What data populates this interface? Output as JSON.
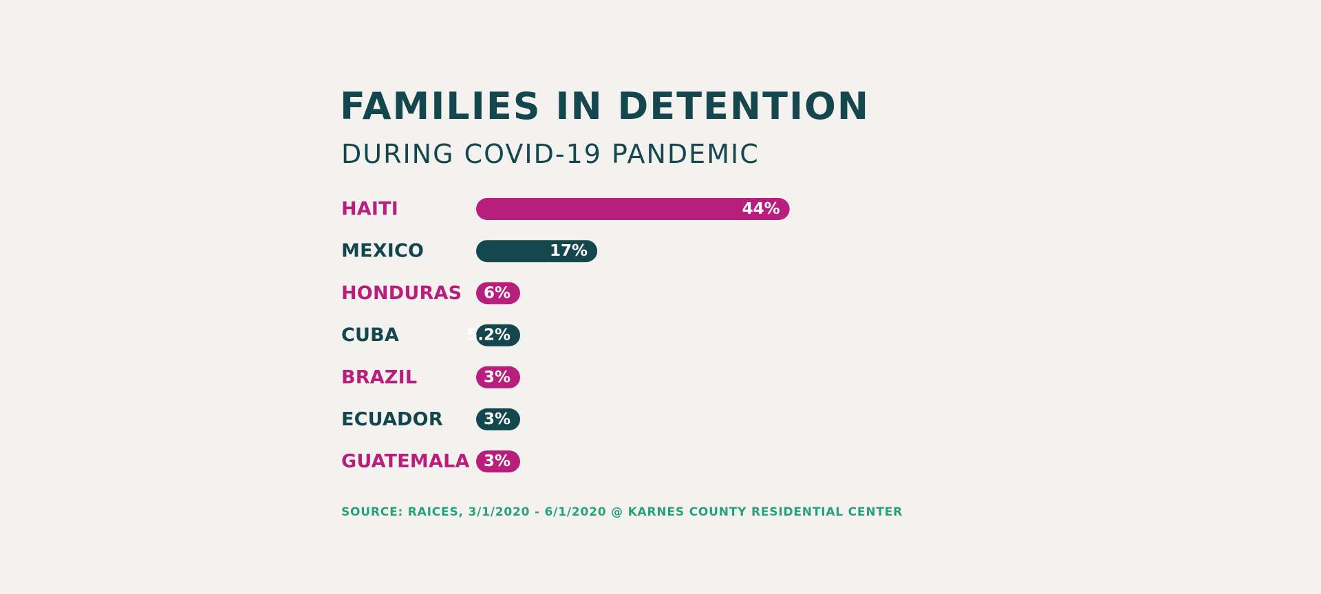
{
  "chart_data": {
    "type": "bar",
    "orientation": "horizontal",
    "title": "FAMILIES IN DETENTION",
    "subtitle": "DURING COVID-19 PANDEMIC",
    "categories": [
      "HAITI",
      "MEXICO",
      "HONDURAS",
      "CUBA",
      "BRAZIL",
      "ECUADOR",
      "GUATEMALA"
    ],
    "values": [
      44,
      17,
      6,
      5.2,
      3,
      3,
      3
    ],
    "value_labels": [
      "44%",
      "17%",
      "6%",
      "5.2%",
      "3%",
      "3%",
      "3%"
    ],
    "xlabel": "",
    "ylabel": "",
    "xlim": [
      0,
      44
    ],
    "grid": false,
    "colors": [
      "#b81e7c",
      "#14474d",
      "#b81e7c",
      "#14474d",
      "#b81e7c",
      "#14474d",
      "#b81e7c"
    ],
    "value_label_color": "#ffffff",
    "source": "SOURCE: RAICES, 3/1/2020 - 6/1/2020 @ KARNES COUNTY RESIDENTIAL CENTER"
  },
  "colors": {
    "background": "#f4f2ef",
    "title": "#14474d",
    "source": "#27a07f"
  }
}
